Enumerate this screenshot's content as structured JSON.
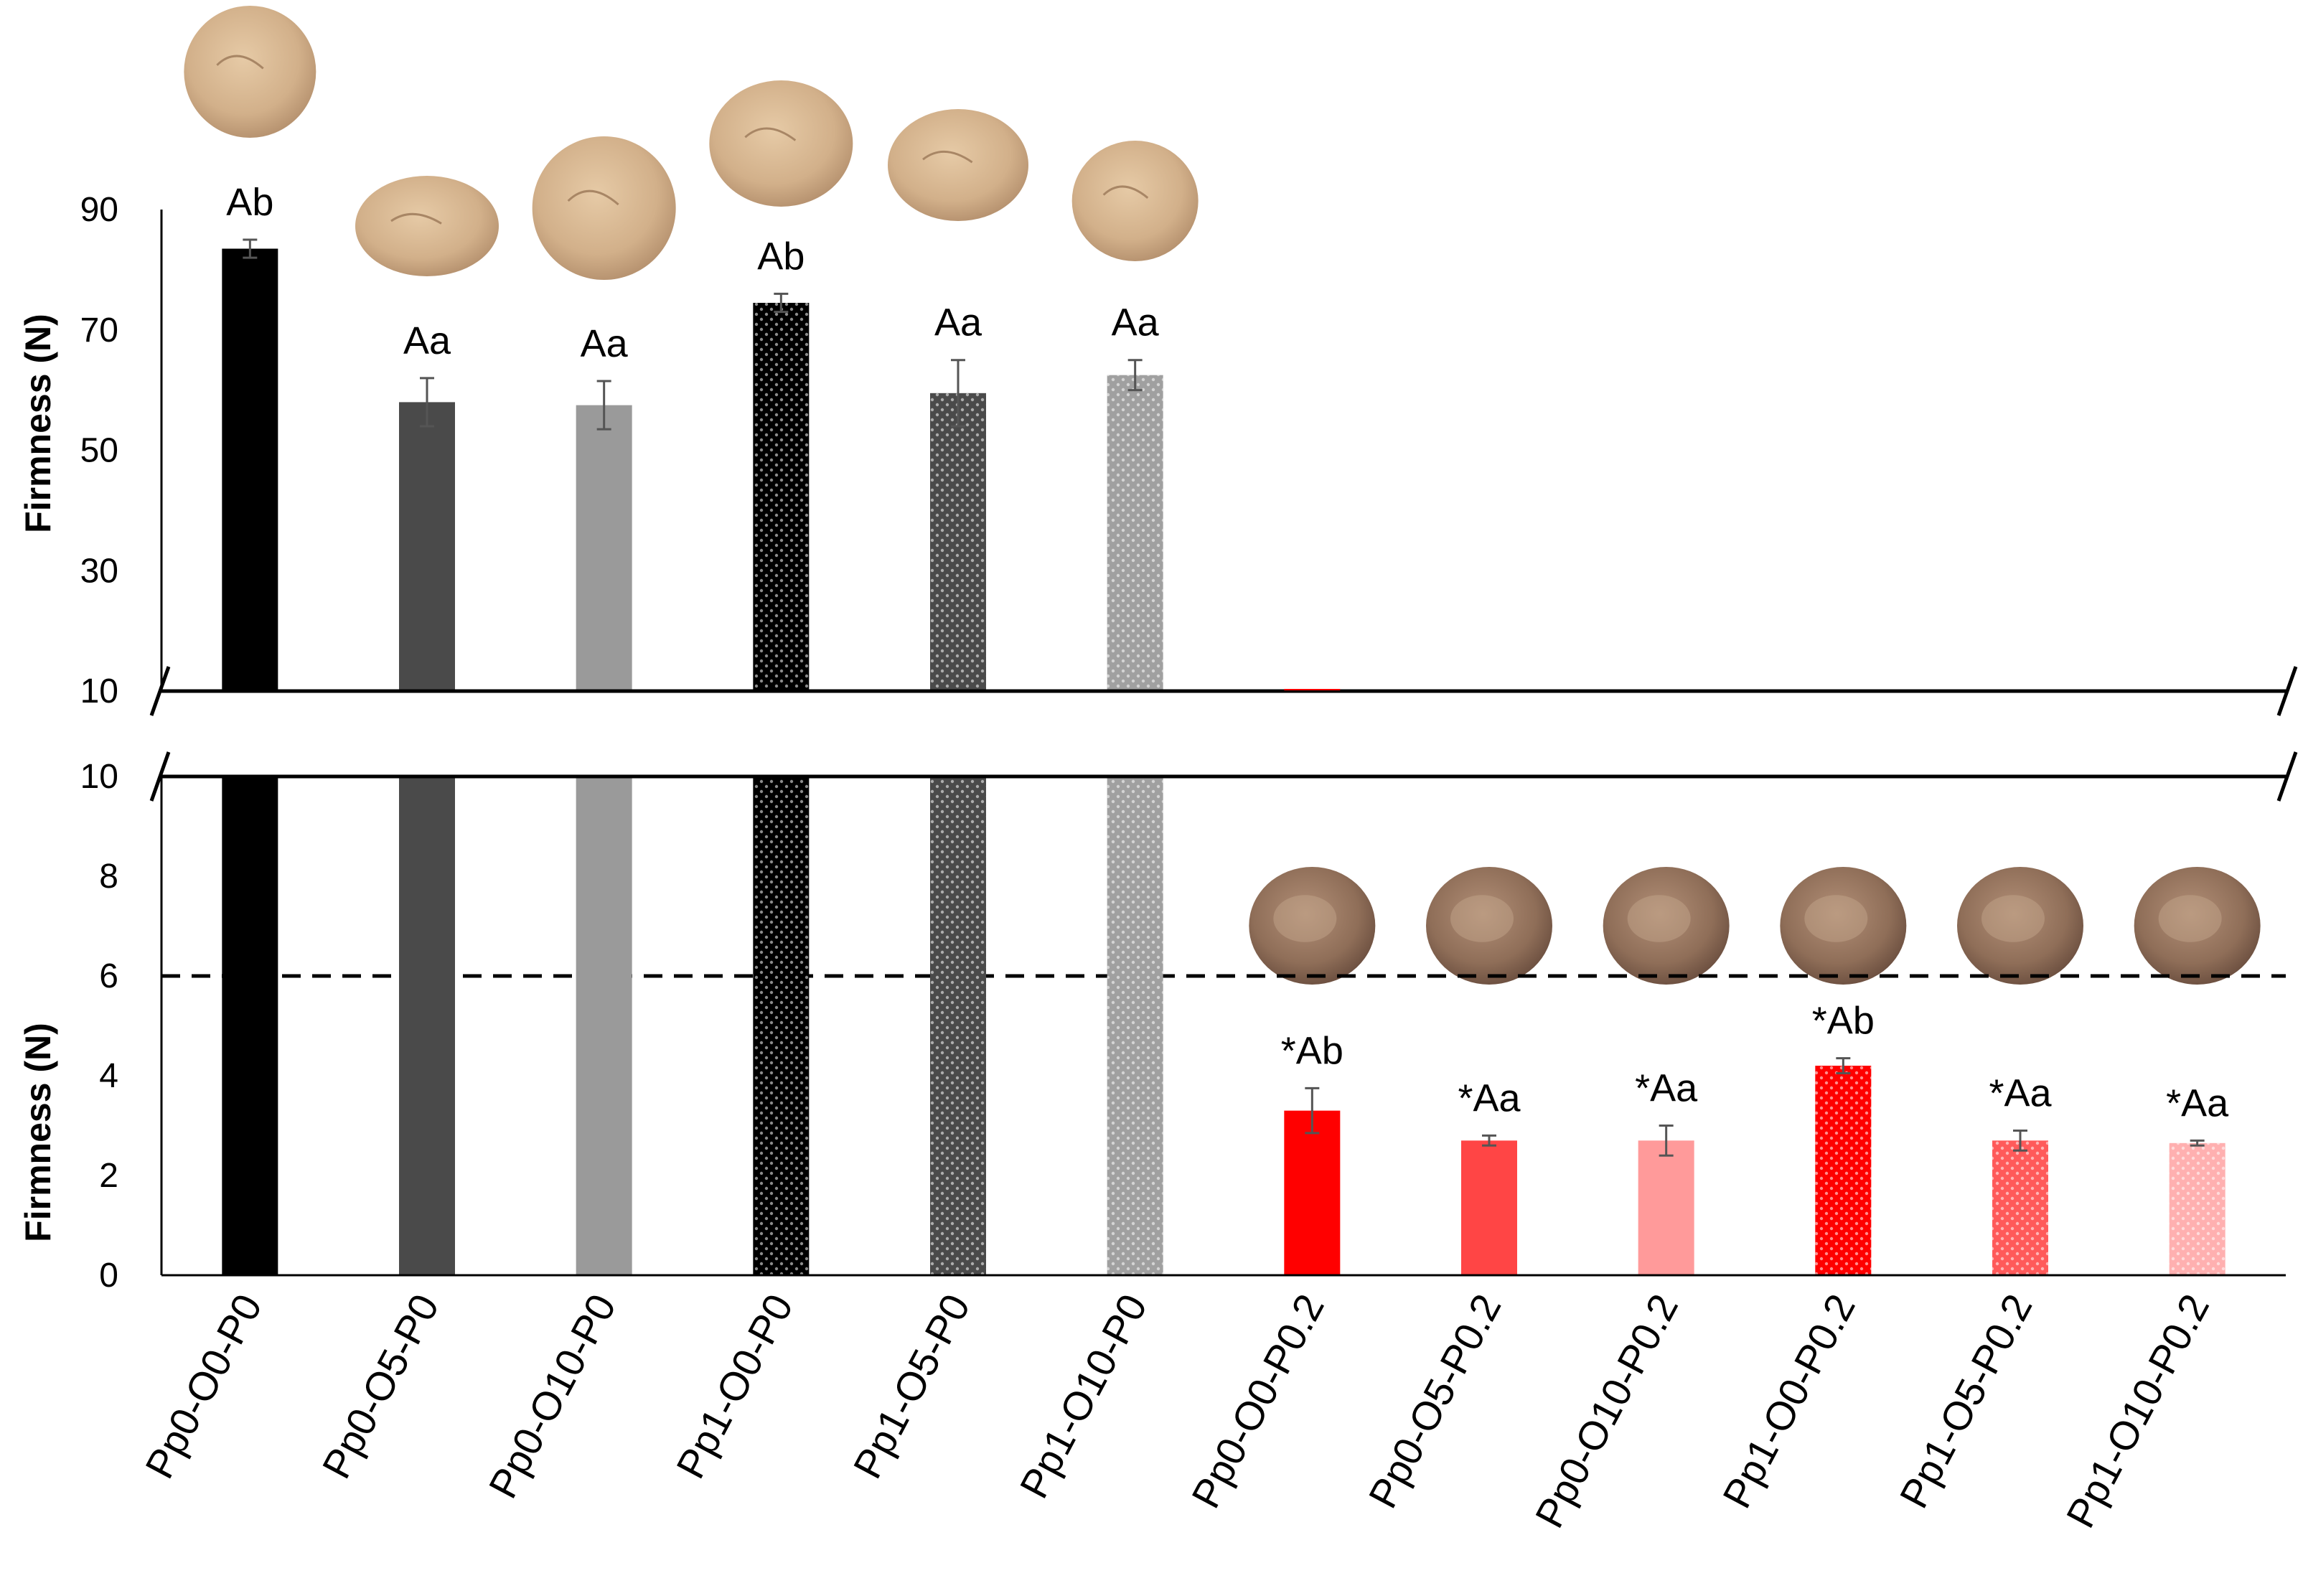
{
  "chart_data": {
    "type": "bar",
    "broken_axis": true,
    "ylabel": "Firmness (N)",
    "upper_panel": {
      "ylabel": "Firmness (N)",
      "ylim": [
        10,
        90
      ],
      "yticks": [
        "10",
        "30",
        "50",
        "70",
        "90"
      ]
    },
    "lower_panel": {
      "ylabel": "Firmness (N)",
      "ylim": [
        0,
        10
      ],
      "yticks": [
        "0",
        "2",
        "4",
        "6",
        "8",
        "10"
      ],
      "threshold_line": 6
    },
    "categories": [
      "Pp0-O0-P0",
      "Pp0-O5-P0",
      "Pp0-O10-P0",
      "Pp1-O0-P0",
      "Pp1-O5-P0",
      "Pp1-O10-P0",
      "Pp0-O0-P0.2",
      "Pp0-O5-P0.2",
      "Pp0-O10-P0.2",
      "Pp1-O0-P0.2",
      "Pp1-O5-P0.2",
      "Pp1-O10-P0.2"
    ],
    "values": [
      83.5,
      58,
      57.5,
      74.5,
      59.5,
      62.5,
      3.3,
      2.7,
      2.7,
      4.2,
      2.7,
      2.65
    ],
    "errors": [
      1.5,
      4.0,
      4.0,
      1.5,
      5.5,
      2.5,
      0.45,
      0.1,
      0.3,
      0.15,
      0.2,
      0.05
    ],
    "labels": [
      "Ab",
      "Aa",
      "Aa",
      "Ab",
      "Aa",
      "Aa",
      "*Ab",
      "*Aa",
      "*Aa",
      "*Ab",
      "*Aa",
      "*Aa"
    ],
    "colors": [
      "#000000",
      "#4a4a4a",
      "#9a9a9a",
      "#000000",
      "#4a4a4a",
      "#a0a0a0",
      "#ff0000",
      "#ff4545",
      "#ff9a9a",
      "#ff0000",
      "#ff5a5a",
      "#ffb0b0"
    ],
    "dotted": [
      false,
      false,
      false,
      true,
      true,
      true,
      false,
      false,
      false,
      true,
      true,
      true
    ]
  }
}
